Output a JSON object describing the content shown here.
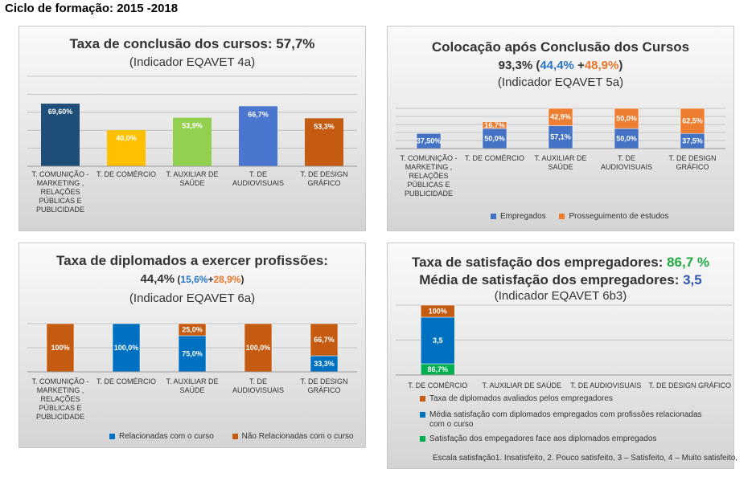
{
  "heading": "Ciclo de formação: 2015 -2018",
  "chart_data": [
    {
      "type": "bar",
      "title": "Taxa de conclusão dos cursos: 57,7%",
      "subtitle": "(Indicador EQAVET 4a)",
      "ylim": [
        0,
        100
      ],
      "categories": [
        "T. COMUNIÇÃO - MARKETING , RELAÇÕES PÚBLICAS E PUBLICIDADE",
        "T. DE COMÉRCIO",
        "T. AUXILIAR DE SAÚDE",
        "T. DE AUDIOVISUAIS",
        "T. DE DESIGN GRÁFICO"
      ],
      "values": [
        69.6,
        40.0,
        53.9,
        66.7,
        53.3
      ],
      "data_labels": [
        "69,60%",
        "40,0%",
        "53,9%",
        "66,7%",
        "53,3%"
      ],
      "colors": [
        "#1f4e79",
        "#ffc000",
        "#92d050",
        "#4a76cf",
        "#c55a11"
      ]
    },
    {
      "type": "bar",
      "title": "Colocação após Conclusão dos Cursos",
      "headline": {
        "total": "93,3%",
        "open": " (",
        "employed": "44,4%",
        "plus": " +",
        "studies": "48,9%",
        "close": ")"
      },
      "subtitle": "(Indicador EQAVET 5a)",
      "ylim": [
        0,
        100
      ],
      "categories": [
        "T. COMUNIÇÃO - MARKETING , RELAÇÕES PÚBLICAS E PUBLICIDADE",
        "T. DE COMÉRCIO",
        "T. AUXILIAR DE SAÚDE",
        "T. DE AUDIOVISUAIS",
        "T. DE DESIGN GRÁFICO"
      ],
      "series": [
        {
          "name": "Empregados",
          "color": "#4472c4",
          "values": [
            37.5,
            50.0,
            57.1,
            50.0,
            37.5
          ],
          "labels": [
            "37,50%",
            "50,0%",
            "57,1%",
            "50,0%",
            "37,5%"
          ]
        },
        {
          "name": "Prosseguimento de estudos",
          "color": "#ed7d31",
          "values": [
            0,
            16.7,
            42.9,
            50.0,
            62.5
          ],
          "labels": [
            "",
            "16,7%",
            "42,9%",
            "50,0%",
            "62,5%"
          ]
        }
      ],
      "legend": "bottom"
    },
    {
      "type": "bar",
      "title": "Taxa de diplomados a exercer profissões:",
      "headline": {
        "total": "44,4%",
        "open": " (",
        "related": "15,6%",
        "plus": "+",
        "unrelated": "28,9%",
        "close": ")"
      },
      "subtitle": "(Indicador EQAVET 6a)",
      "ylim": [
        0,
        100
      ],
      "categories": [
        "T. COMUNIÇÃO - MARKETING , RELAÇÕES PÚBLICAS E PUBLICIDADE",
        "T. DE COMÉRCIO",
        "T. AUXILIAR DE SAÚDE",
        "T. DE AUDIOVISUAIS",
        "T. DE DESIGN GRÁFICO"
      ],
      "series": [
        {
          "name": "Relacionadas com o curso",
          "color": "#0070c0",
          "values": [
            0,
            100.0,
            75.0,
            0,
            33.3
          ],
          "labels": [
            "",
            "100,0%",
            "75,0%",
            "",
            "33,3%"
          ]
        },
        {
          "name": "Não Relacionadas com o curso",
          "color": "#c55a11",
          "values": [
            100,
            0,
            25.0,
            100.0,
            66.7
          ],
          "labels": [
            "100%",
            "",
            "25,0%",
            "100,0%",
            "66,7%"
          ]
        }
      ],
      "legend": "bottom"
    },
    {
      "type": "bar",
      "title_prefix": "Taxa de satisfação dos empregadores: ",
      "title_value": "86,7 %",
      "title2_prefix": "Média de satisfação dos empregadores: ",
      "title2_value": "3,5",
      "subtitle": "(Indicador EQAVET 6b3)",
      "categories": [
        "T. DE COMÉRCIO",
        "T. AUXILIAR DE SAÚDE",
        "T. DE AUDIOVISUAIS",
        "T. DE DESIGN GRÁFICO"
      ],
      "series": [
        {
          "name": "Satisfação dos empegadores face aos diplomados empregados",
          "color": "#00b050",
          "values": [
            86.7,
            0,
            0,
            0
          ],
          "labels": [
            "86,7%",
            "",
            "",
            ""
          ]
        },
        {
          "name": "Média satisfação com diplomados empregados com profissões relacionadas com o curso",
          "color": "#0070c0",
          "values": [
            3.5,
            0,
            0,
            0
          ],
          "labels": [
            "3,5",
            "",
            "",
            ""
          ]
        },
        {
          "name": "Taxa de diplomados avaliados pelos empregadores",
          "color": "#c55a11",
          "values": [
            100,
            0,
            0,
            0
          ],
          "labels": [
            "100%",
            "",
            "",
            ""
          ]
        }
      ],
      "note": "Escala satisfação1. Insatisfeito, 2. Pouco satisfeito, 3 – Satisfeito, 4 – Muito satisfeito,"
    }
  ]
}
